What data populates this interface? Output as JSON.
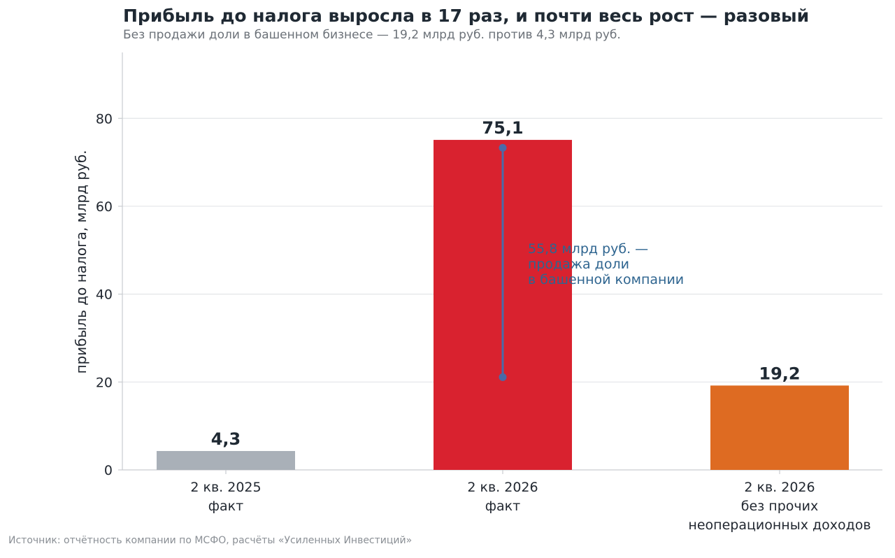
{
  "chart_data": {
    "type": "bar",
    "title": "Прибыль до налога выросла в 17 раз, и почти весь рост — разовый",
    "subtitle": "Без продажи доли в башенном бизнесе — 19,2 млрд руб. против 4,3 млрд руб.",
    "ylabel": "прибыль до налога, млрд руб.",
    "xlabel": "",
    "ylim": [
      0,
      95
    ],
    "yticks": [
      0,
      20,
      40,
      60,
      80
    ],
    "grid": true,
    "categories": [
      [
        "2 кв. 2025",
        "факт"
      ],
      [
        "2 кв. 2026",
        "факт"
      ],
      [
        "2 кв. 2026",
        "без прочих",
        "неоперационных доходов"
      ]
    ],
    "values": [
      4.3,
      75.1,
      19.2
    ],
    "value_labels": [
      "4,3",
      "75,1",
      "19,2"
    ],
    "colors": [
      "#a9b0b8",
      "#d9222f",
      "#de6b22"
    ],
    "annotation": {
      "lines": [
        "55,8 млрд руб. —",
        "продажа доли",
        "в башенной компании"
      ],
      "bar_index": 1,
      "from": 21.1,
      "to": 73.3,
      "color": "#4a6aa8"
    },
    "source": "Источник: отчётность компании по МСФО, расчёты «Усиленных Инвестиций»"
  }
}
